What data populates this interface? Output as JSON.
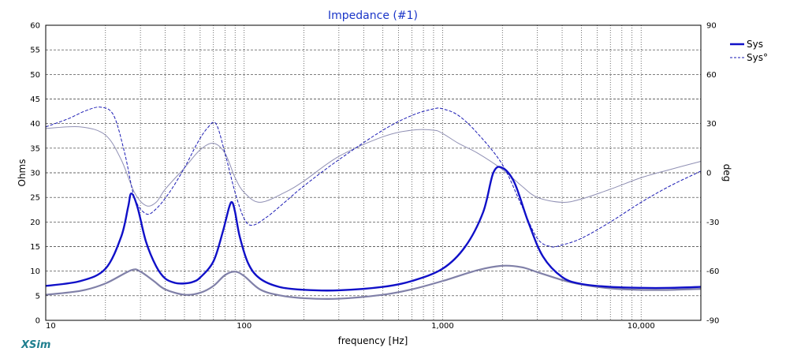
{
  "app": {
    "brand": "XSim"
  },
  "chart_data": {
    "type": "line",
    "title": "Impedance (#1)",
    "xlabel": "frequency [Hz]",
    "ylabel": "Ohms",
    "y2label": "deg",
    "x_scale": "log",
    "xlim": [
      10,
      20000
    ],
    "ylim": [
      0,
      60
    ],
    "y2lim": [
      -90,
      90
    ],
    "grid": true,
    "legend_position": "top-right",
    "x_ticks": [
      10,
      100,
      1000,
      10000
    ],
    "x_tick_labels": [
      "10",
      "100",
      "1,000",
      "10,000"
    ],
    "y_ticks": [
      0,
      5,
      10,
      15,
      20,
      25,
      30,
      35,
      40,
      45,
      50,
      55,
      60
    ],
    "y_tick_labels": [
      "0",
      "5",
      "10",
      "15",
      "20",
      "25",
      "30",
      "35",
      "40",
      "45",
      "50",
      "55",
      "60"
    ],
    "y2_ticks": [
      90,
      60,
      30,
      0,
      -30,
      -60,
      -90
    ],
    "y2_tick_labels": [
      "90",
      "60",
      "30",
      "0",
      "-30",
      "-60",
      "-90"
    ],
    "colors": {
      "primary": "#1010c8",
      "phase": "#1a1ab4",
      "reference": "#8080a8",
      "reference_phase": "#9090b4",
      "title": "#1a35c8",
      "grid": "#333333",
      "brand": "#1f7f8f"
    },
    "series": [
      {
        "name": "Sys",
        "axis": "left",
        "style": "solid-thick",
        "x": [
          10,
          15,
          20,
          24,
          26,
          27,
          29,
          32,
          36,
          40,
          45,
          50,
          55,
          60,
          70,
          78,
          84,
          87,
          90,
          95,
          105,
          120,
          150,
          200,
          300,
          500,
          700,
          1000,
          1300,
          1600,
          1800,
          2000,
          2300,
          2700,
          3200,
          4000,
          5000,
          7000,
          10000,
          14000,
          20000
        ],
        "y": [
          7,
          8,
          10.5,
          17,
          23,
          25.8,
          23,
          16,
          11,
          8.5,
          7.6,
          7.5,
          7.8,
          8.7,
          12,
          18,
          23,
          24,
          22,
          17,
          11.5,
          8.5,
          6.8,
          6.2,
          6.1,
          6.8,
          8,
          10.5,
          15,
          22,
          30,
          31,
          28,
          20,
          13,
          8.8,
          7.4,
          6.8,
          6.6,
          6.6,
          6.8
        ]
      },
      {
        "name": "Sys°",
        "axis": "right",
        "style": "dashed",
        "x": [
          10,
          13,
          16,
          19,
          22,
          25,
          28,
          32,
          36,
          42,
          50,
          58,
          65,
          72,
          80,
          90,
          100,
          110,
          130,
          160,
          200,
          300,
          500,
          700,
          900,
          1000,
          1200,
          1500,
          2000,
          2500,
          3000,
          3500,
          4000,
          5000,
          7000,
          10000,
          14000,
          20000
        ],
        "y": [
          28,
          33,
          38,
          40,
          35,
          12,
          -15,
          -25,
          -22,
          -12,
          3,
          18,
          27,
          30,
          12,
          -12,
          -28,
          -32,
          -27,
          -18,
          -8,
          8,
          26,
          35,
          39,
          39,
          35,
          24,
          5,
          -20,
          -40,
          -45,
          -44,
          -40,
          -30,
          -18,
          -8,
          1
        ]
      },
      {
        "axis": "left",
        "style": "solid-reference",
        "x": [
          10,
          15,
          20,
          27,
          30,
          35,
          40,
          50,
          60,
          70,
          80,
          90,
          100,
          120,
          150,
          200,
          300,
          500,
          700,
          1000,
          1500,
          2000,
          2500,
          3000,
          4000,
          5000,
          7000,
          10000,
          14000,
          20000
        ],
        "y": [
          5.2,
          6,
          7.5,
          10.2,
          9.9,
          8,
          6.3,
          5.2,
          5.6,
          7,
          9.2,
          9.9,
          9,
          6.3,
          5.1,
          4.5,
          4.4,
          5.2,
          6.3,
          8,
          10.2,
          11.1,
          10.8,
          9.8,
          8.2,
          7.3,
          6.5,
          6.2,
          6.2,
          6.4
        ]
      },
      {
        "axis": "right",
        "style": "solid-reference-phase",
        "x": [
          10,
          15,
          20,
          24,
          28,
          32,
          36,
          40,
          50,
          60,
          70,
          80,
          90,
          100,
          120,
          160,
          200,
          300,
          500,
          700,
          900,
          1000,
          1200,
          1500,
          2000,
          2500,
          3000,
          4000,
          5000,
          7000,
          10000,
          14000,
          20000
        ],
        "y": [
          27,
          28,
          23,
          8,
          -12,
          -20,
          -18,
          -10,
          3,
          14,
          18,
          12,
          -3,
          -12,
          -18,
          -12,
          -5,
          10,
          22,
          26,
          26,
          24,
          18,
          12,
          2,
          -8,
          -15,
          -18,
          -16,
          -10,
          -3,
          2,
          7
        ]
      }
    ]
  }
}
